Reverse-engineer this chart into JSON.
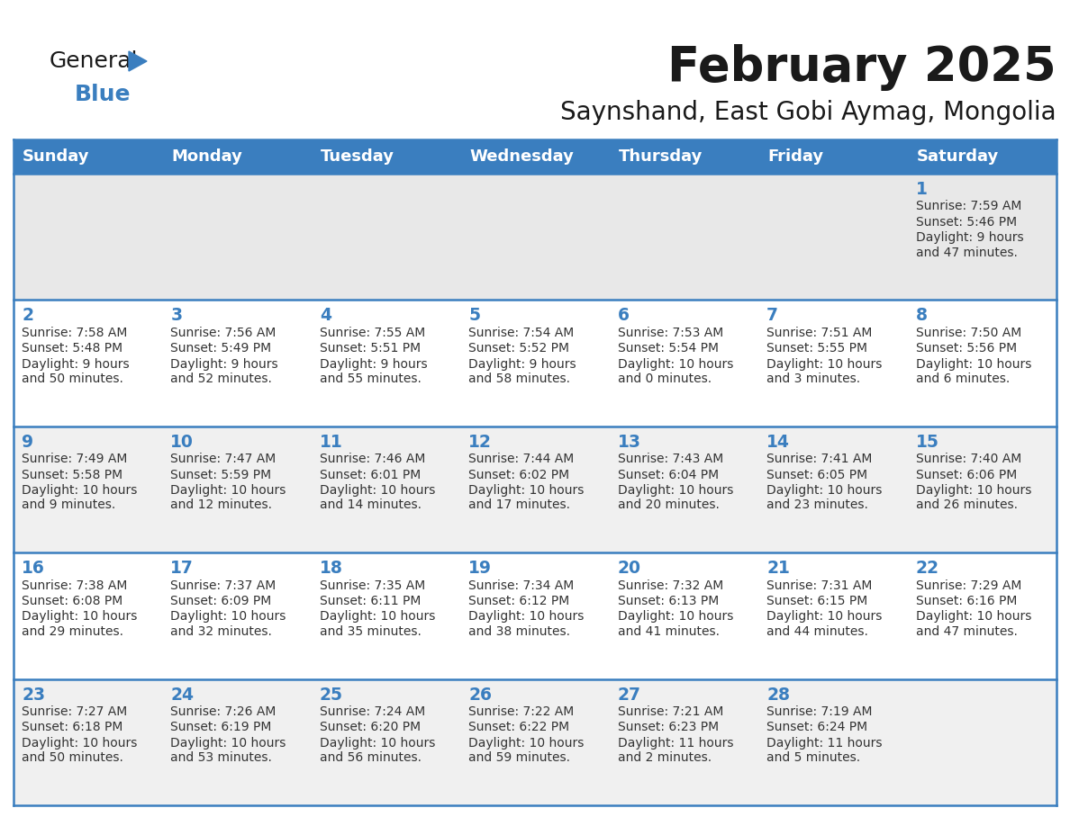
{
  "title": "February 2025",
  "subtitle": "Saynshand, East Gobi Aymag, Mongolia",
  "header_bg": "#3a7ebf",
  "header_text_color": "#ffffff",
  "border_color": "#3a7ebf",
  "row0_bg": "#e8e8e8",
  "row_odd_bg": "#ffffff",
  "row_even_bg": "#f0f0f0",
  "title_color": "#1a1a1a",
  "subtitle_color": "#1a1a1a",
  "day_num_color": "#3a7ebf",
  "cell_text_color": "#333333",
  "day_headers": [
    "Sunday",
    "Monday",
    "Tuesday",
    "Wednesday",
    "Thursday",
    "Friday",
    "Saturday"
  ],
  "logo_general_color": "#1a1a1a",
  "logo_blue_color": "#3a7ebf",
  "logo_triangle_color": "#3a7ebf",
  "days": [
    {
      "day": 1,
      "col": 6,
      "row": 0,
      "sunrise": "7:59 AM",
      "sunset": "5:46 PM",
      "daylight_h": "9",
      "daylight_m": "47"
    },
    {
      "day": 2,
      "col": 0,
      "row": 1,
      "sunrise": "7:58 AM",
      "sunset": "5:48 PM",
      "daylight_h": "9",
      "daylight_m": "50"
    },
    {
      "day": 3,
      "col": 1,
      "row": 1,
      "sunrise": "7:56 AM",
      "sunset": "5:49 PM",
      "daylight_h": "9",
      "daylight_m": "52"
    },
    {
      "day": 4,
      "col": 2,
      "row": 1,
      "sunrise": "7:55 AM",
      "sunset": "5:51 PM",
      "daylight_h": "9",
      "daylight_m": "55"
    },
    {
      "day": 5,
      "col": 3,
      "row": 1,
      "sunrise": "7:54 AM",
      "sunset": "5:52 PM",
      "daylight_h": "9",
      "daylight_m": "58"
    },
    {
      "day": 6,
      "col": 4,
      "row": 1,
      "sunrise": "7:53 AM",
      "sunset": "5:54 PM",
      "daylight_h": "10",
      "daylight_m": "0"
    },
    {
      "day": 7,
      "col": 5,
      "row": 1,
      "sunrise": "7:51 AM",
      "sunset": "5:55 PM",
      "daylight_h": "10",
      "daylight_m": "3"
    },
    {
      "day": 8,
      "col": 6,
      "row": 1,
      "sunrise": "7:50 AM",
      "sunset": "5:56 PM",
      "daylight_h": "10",
      "daylight_m": "6"
    },
    {
      "day": 9,
      "col": 0,
      "row": 2,
      "sunrise": "7:49 AM",
      "sunset": "5:58 PM",
      "daylight_h": "10",
      "daylight_m": "9"
    },
    {
      "day": 10,
      "col": 1,
      "row": 2,
      "sunrise": "7:47 AM",
      "sunset": "5:59 PM",
      "daylight_h": "10",
      "daylight_m": "12"
    },
    {
      "day": 11,
      "col": 2,
      "row": 2,
      "sunrise": "7:46 AM",
      "sunset": "6:01 PM",
      "daylight_h": "10",
      "daylight_m": "14"
    },
    {
      "day": 12,
      "col": 3,
      "row": 2,
      "sunrise": "7:44 AM",
      "sunset": "6:02 PM",
      "daylight_h": "10",
      "daylight_m": "17"
    },
    {
      "day": 13,
      "col": 4,
      "row": 2,
      "sunrise": "7:43 AM",
      "sunset": "6:04 PM",
      "daylight_h": "10",
      "daylight_m": "20"
    },
    {
      "day": 14,
      "col": 5,
      "row": 2,
      "sunrise": "7:41 AM",
      "sunset": "6:05 PM",
      "daylight_h": "10",
      "daylight_m": "23"
    },
    {
      "day": 15,
      "col": 6,
      "row": 2,
      "sunrise": "7:40 AM",
      "sunset": "6:06 PM",
      "daylight_h": "10",
      "daylight_m": "26"
    },
    {
      "day": 16,
      "col": 0,
      "row": 3,
      "sunrise": "7:38 AM",
      "sunset": "6:08 PM",
      "daylight_h": "10",
      "daylight_m": "29"
    },
    {
      "day": 17,
      "col": 1,
      "row": 3,
      "sunrise": "7:37 AM",
      "sunset": "6:09 PM",
      "daylight_h": "10",
      "daylight_m": "32"
    },
    {
      "day": 18,
      "col": 2,
      "row": 3,
      "sunrise": "7:35 AM",
      "sunset": "6:11 PM",
      "daylight_h": "10",
      "daylight_m": "35"
    },
    {
      "day": 19,
      "col": 3,
      "row": 3,
      "sunrise": "7:34 AM",
      "sunset": "6:12 PM",
      "daylight_h": "10",
      "daylight_m": "38"
    },
    {
      "day": 20,
      "col": 4,
      "row": 3,
      "sunrise": "7:32 AM",
      "sunset": "6:13 PM",
      "daylight_h": "10",
      "daylight_m": "41"
    },
    {
      "day": 21,
      "col": 5,
      "row": 3,
      "sunrise": "7:31 AM",
      "sunset": "6:15 PM",
      "daylight_h": "10",
      "daylight_m": "44"
    },
    {
      "day": 22,
      "col": 6,
      "row": 3,
      "sunrise": "7:29 AM",
      "sunset": "6:16 PM",
      "daylight_h": "10",
      "daylight_m": "47"
    },
    {
      "day": 23,
      "col": 0,
      "row": 4,
      "sunrise": "7:27 AM",
      "sunset": "6:18 PM",
      "daylight_h": "10",
      "daylight_m": "50"
    },
    {
      "day": 24,
      "col": 1,
      "row": 4,
      "sunrise": "7:26 AM",
      "sunset": "6:19 PM",
      "daylight_h": "10",
      "daylight_m": "53"
    },
    {
      "day": 25,
      "col": 2,
      "row": 4,
      "sunrise": "7:24 AM",
      "sunset": "6:20 PM",
      "daylight_h": "10",
      "daylight_m": "56"
    },
    {
      "day": 26,
      "col": 3,
      "row": 4,
      "sunrise": "7:22 AM",
      "sunset": "6:22 PM",
      "daylight_h": "10",
      "daylight_m": "59"
    },
    {
      "day": 27,
      "col": 4,
      "row": 4,
      "sunrise": "7:21 AM",
      "sunset": "6:23 PM",
      "daylight_h": "11",
      "daylight_m": "2"
    },
    {
      "day": 28,
      "col": 5,
      "row": 4,
      "sunrise": "7:19 AM",
      "sunset": "6:24 PM",
      "daylight_h": "11",
      "daylight_m": "5"
    }
  ]
}
